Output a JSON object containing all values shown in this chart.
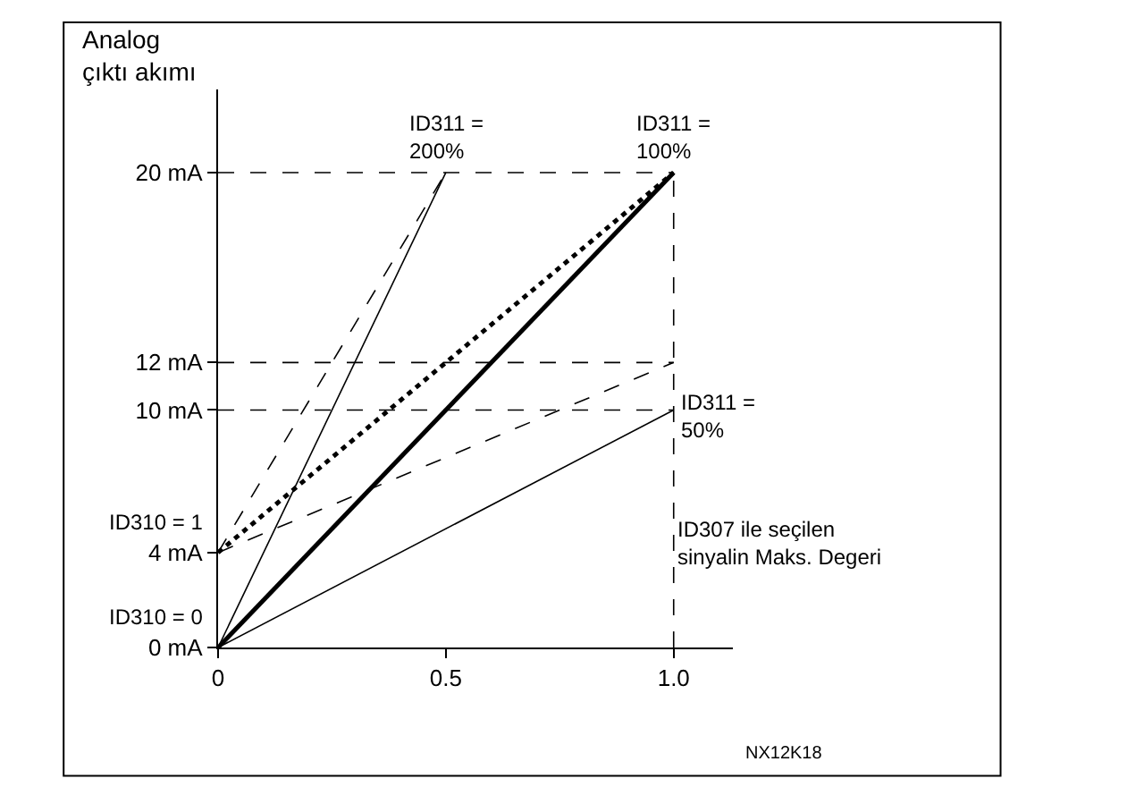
{
  "chart_data": {
    "type": "line",
    "ylabel": "Analog\nçıktı akımı",
    "xlim": [
      0,
      1.13
    ],
    "xticks": [
      0,
      0.5,
      {
        "value": 1,
        "label": "1.0"
      }
    ],
    "ylim": [
      0,
      23.5
    ],
    "yticks": [
      {
        "value": 0,
        "label": "0 mA"
      },
      {
        "value": 4,
        "label": "4 mA"
      },
      {
        "value": 10,
        "label": "10 mA"
      },
      {
        "value": 12,
        "label": "12 mA"
      },
      {
        "value": 20,
        "label": "20 mA"
      }
    ],
    "grid": false,
    "legend": false,
    "marker": "none",
    "series": [
      {
        "color": "#000000",
        "x": [
          0,
          1
        ],
        "values": [
          0,
          20
        ],
        "line_style": "solid"
      },
      {
        "color": "#000000",
        "x": [
          0,
          1
        ],
        "values": [
          4,
          20
        ],
        "line_style": "dotted"
      },
      {
        "color": "#000000",
        "x": [
          0,
          0.5
        ],
        "values": [
          0,
          20
        ],
        "line_style": "solid"
      },
      {
        "color": "#000000",
        "x": [
          0,
          0.5
        ],
        "values": [
          4,
          20
        ],
        "line_style": "dashed"
      },
      {
        "color": "#000000",
        "x": [
          0,
          1
        ],
        "values": [
          0,
          10
        ],
        "line_style": "solid"
      },
      {
        "color": "#000000",
        "x": [
          0,
          1
        ],
        "values": [
          4,
          12
        ],
        "line_style": "dashed"
      }
    ],
    "ref_lines": [
      {
        "axis": "y",
        "value": 20,
        "line_style": "dashed",
        "color": "#000000"
      },
      {
        "axis": "y",
        "value": 12,
        "line_style": "dashed",
        "color": "#000000"
      },
      {
        "axis": "y",
        "value": 10,
        "line_style": "dashed",
        "color": "#000000"
      },
      {
        "axis": "x",
        "value": 1,
        "line_style": "dashed",
        "color": "#000000"
      }
    ],
    "annotations": [
      {
        "text": "ID311 =\n200%",
        "x": 0.5,
        "y": 20
      },
      {
        "text": "ID311 =\n100%",
        "x": 1,
        "y": 20
      },
      {
        "text": "ID311 =\n50%",
        "x": 1,
        "y": 10
      },
      {
        "text": "ID310 = 1",
        "x": 0,
        "y": 4
      },
      {
        "text": "ID310 = 0",
        "x": 0,
        "y": 0
      },
      "ID307 ile seçilen\nsinyalin Maks. Degeri",
      "NX12K18"
    ]
  }
}
